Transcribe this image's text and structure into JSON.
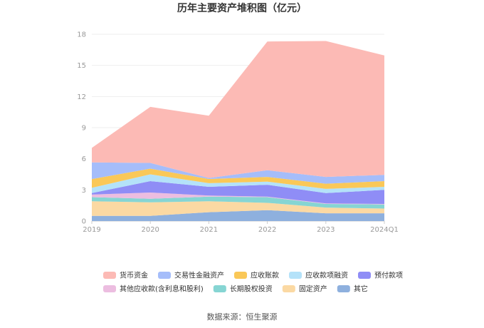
{
  "chart_data": {
    "type": "area",
    "stacked": true,
    "title": "历年主要资产堆积图（亿元）",
    "categories": [
      "2019",
      "2020",
      "2021",
      "2022",
      "2023",
      "2024Q1"
    ],
    "yticks": [
      "0",
      "3",
      "6",
      "9",
      "12",
      "15",
      "18"
    ],
    "ylim": [
      0,
      18
    ],
    "grid": true,
    "legend_position": "bottom",
    "series": [
      {
        "name": "其它",
        "color": "#8eb0de",
        "values": [
          0.5,
          0.5,
          0.85,
          1.05,
          0.75,
          0.75
        ]
      },
      {
        "name": "固定资产",
        "color": "#fbd9a3",
        "values": [
          1.4,
          1.3,
          1.05,
          0.7,
          0.55,
          0.45
        ]
      },
      {
        "name": "长期股权投资",
        "color": "#86d5d3",
        "values": [
          0.4,
          0.35,
          0.45,
          0.55,
          0.35,
          0.4
        ]
      },
      {
        "name": "其他应收款(含利息和股利)",
        "color": "#ecbde0",
        "values": [
          0.25,
          0.6,
          0.1,
          0.05,
          0.05,
          0.05
        ]
      },
      {
        "name": "预付款项",
        "color": "#8f8df6",
        "values": [
          0.15,
          1.1,
          0.85,
          1.15,
          1.0,
          1.35
        ]
      },
      {
        "name": "应收款项融资",
        "color": "#b4e2f9",
        "values": [
          0.5,
          0.65,
          0.35,
          0.3,
          0.4,
          0.3
        ]
      },
      {
        "name": "应收账款",
        "color": "#fac858",
        "values": [
          0.85,
          0.55,
          0.4,
          0.45,
          0.5,
          0.55
        ]
      },
      {
        "name": "交易性金融资产",
        "color": "#a5bdfa",
        "values": [
          1.6,
          0.55,
          0.1,
          0.65,
          0.65,
          0.6
        ]
      },
      {
        "name": "货币资金",
        "color": "#fcbab5",
        "values": [
          1.4,
          5.4,
          6.0,
          12.4,
          13.1,
          11.5
        ]
      }
    ]
  },
  "legend_rows": [
    [
      "货币资金",
      "交易性金融资产",
      "应收账款",
      "应收款项融资",
      "预付款项"
    ],
    [
      "其他应收款(含利息和股利)",
      "长期股权投资",
      "固定资产",
      "其它"
    ]
  ],
  "source_label": "数据来源：恒生聚源"
}
